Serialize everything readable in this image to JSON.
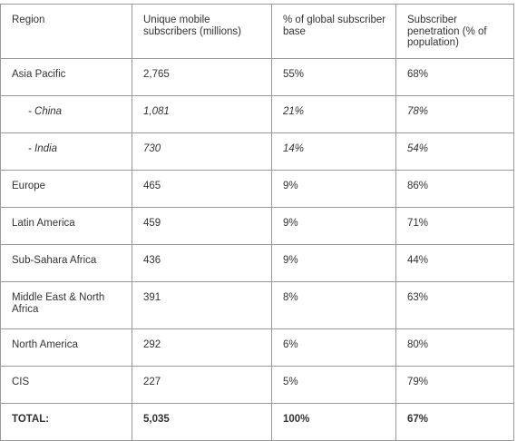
{
  "table": {
    "headers": [
      "Region",
      "Unique mobile subscribers (millions)",
      "% of global subscriber base",
      "Subscriber penetration (% of population)"
    ],
    "rows": [
      {
        "region": "Asia Pacific",
        "subscribers": "2,765",
        "share": "55%",
        "penetration": "68%",
        "sub": false
      },
      {
        "region": "- China",
        "subscribers": "1,081",
        "share": "21%",
        "penetration": "78%",
        "sub": true
      },
      {
        "region": "- India",
        "subscribers": "730",
        "share": "14%",
        "penetration": "54%",
        "sub": true
      },
      {
        "region": "Europe",
        "subscribers": "465",
        "share": "9%",
        "penetration": "86%",
        "sub": false
      },
      {
        "region": "Latin America",
        "subscribers": "459",
        "share": "9%",
        "penetration": "71%",
        "sub": false
      },
      {
        "region": "Sub-Sahara Africa",
        "subscribers": "436",
        "share": "9%",
        "penetration": "44%",
        "sub": false
      },
      {
        "region": "Middle East & North Africa",
        "subscribers": "391",
        "share": "8%",
        "penetration": "63%",
        "sub": false
      },
      {
        "region": "North America",
        "subscribers": "292",
        "share": "6%",
        "penetration": "80%",
        "sub": false
      },
      {
        "region": "CIS",
        "subscribers": "227",
        "share": "5%",
        "penetration": "79%",
        "sub": false
      }
    ],
    "total": {
      "region": "TOTAL:",
      "subscribers": "5,035",
      "share": "100%",
      "penetration": "67%"
    }
  }
}
